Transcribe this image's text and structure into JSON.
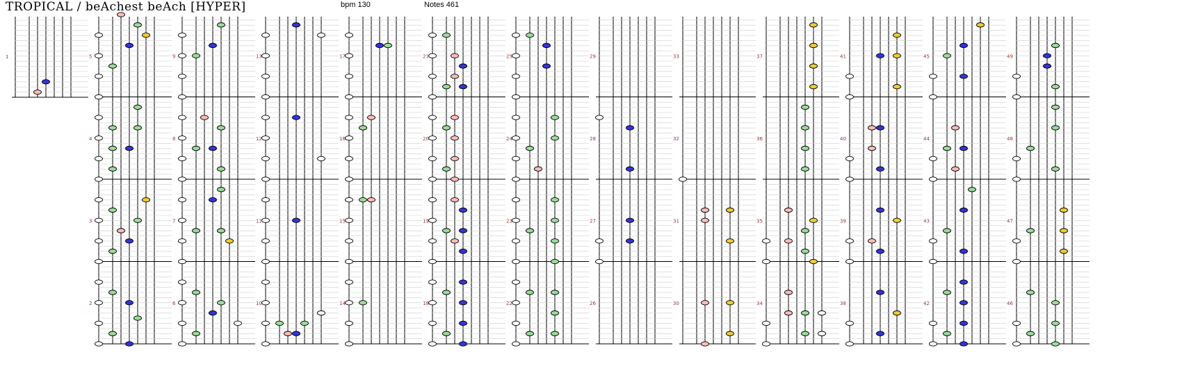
{
  "header": {
    "title": "TROPICAL / beAchest beAch [HYPER]",
    "bpm_text": "bpm 130",
    "notes_text": "Notes 461"
  },
  "colors": {
    "white_note": "#ffffff",
    "green_note": "#99dd99",
    "blue_note": "#3333dd",
    "pink_note": "#ffbbbb",
    "yellow_note": "#eecc33",
    "measure_number": "#993333",
    "lane_line": "#000000",
    "beat_grid": "#cccccc"
  },
  "lane_colors": [
    "white",
    "green",
    "pink",
    "blue",
    "green",
    "yellow",
    "white"
  ],
  "measures": [
    {
      "number": "1",
      "notes": [
        [
          2,
          1
        ],
        [
          3,
          3
        ]
      ]
    },
    {
      "number": "2",
      "notes": [
        [
          0,
          0
        ],
        [
          0,
          4
        ],
        [
          0,
          8
        ],
        [
          0,
          12
        ],
        [
          1,
          2
        ],
        [
          1,
          10
        ],
        [
          3,
          0
        ],
        [
          3,
          8
        ],
        [
          4,
          5
        ]
      ]
    },
    {
      "number": "3",
      "notes": [
        [
          0,
          0
        ],
        [
          0,
          4
        ],
        [
          0,
          8
        ],
        [
          0,
          12
        ],
        [
          1,
          2
        ],
        [
          1,
          10
        ],
        [
          2,
          6
        ],
        [
          3,
          4
        ],
        [
          4,
          8
        ],
        [
          5,
          12
        ]
      ]
    },
    {
      "number": "4",
      "notes": [
        [
          0,
          0
        ],
        [
          0,
          4
        ],
        [
          0,
          8
        ],
        [
          0,
          12
        ],
        [
          1,
          2
        ],
        [
          1,
          10
        ],
        [
          1,
          6
        ],
        [
          3,
          6
        ],
        [
          4,
          14
        ],
        [
          4,
          10
        ]
      ]
    },
    {
      "number": "5",
      "notes": [
        [
          0,
          0
        ],
        [
          0,
          4
        ],
        [
          0,
          8
        ],
        [
          0,
          12
        ],
        [
          1,
          6
        ],
        [
          2,
          16
        ],
        [
          3,
          10
        ],
        [
          4,
          14
        ],
        [
          5,
          12
        ]
      ]
    },
    {
      "number": "6",
      "notes": [
        [
          0,
          0
        ],
        [
          0,
          4
        ],
        [
          0,
          8
        ],
        [
          0,
          12
        ],
        [
          1,
          2
        ],
        [
          1,
          10
        ],
        [
          4,
          8
        ],
        [
          3,
          6
        ],
        [
          6,
          4
        ]
      ]
    },
    {
      "number": "7",
      "notes": [
        [
          0,
          0
        ],
        [
          0,
          4
        ],
        [
          0,
          8
        ],
        [
          0,
          12
        ],
        [
          1,
          6
        ],
        [
          4,
          14
        ],
        [
          3,
          12
        ],
        [
          5,
          4
        ],
        [
          4,
          6
        ]
      ]
    },
    {
      "number": "8",
      "notes": [
        [
          0,
          0
        ],
        [
          0,
          4
        ],
        [
          0,
          8
        ],
        [
          0,
          12
        ],
        [
          1,
          6
        ],
        [
          3,
          6
        ],
        [
          4,
          2
        ],
        [
          2,
          12
        ],
        [
          4,
          10
        ]
      ]
    },
    {
      "number": "9",
      "notes": [
        [
          0,
          0
        ],
        [
          0,
          4
        ],
        [
          0,
          8
        ],
        [
          0,
          12
        ],
        [
          1,
          8
        ],
        [
          3,
          10
        ],
        [
          4,
          14
        ]
      ]
    },
    {
      "number": "10",
      "notes": [
        [
          0,
          0
        ],
        [
          0,
          4
        ],
        [
          0,
          8
        ],
        [
          0,
          12
        ],
        [
          1,
          4
        ],
        [
          2,
          2
        ],
        [
          3,
          2
        ],
        [
          4,
          4
        ],
        [
          6,
          6
        ]
      ]
    },
    {
      "number": "11",
      "notes": [
        [
          0,
          0
        ],
        [
          0,
          4
        ],
        [
          0,
          8
        ],
        [
          0,
          12
        ],
        [
          3,
          8
        ]
      ]
    },
    {
      "number": "12",
      "notes": [
        [
          0,
          0
        ],
        [
          0,
          4
        ],
        [
          0,
          8
        ],
        [
          0,
          12
        ],
        [
          3,
          12
        ],
        [
          6,
          4
        ]
      ]
    },
    {
      "number": "13",
      "notes": [
        [
          0,
          0
        ],
        [
          0,
          4
        ],
        [
          0,
          8
        ],
        [
          0,
          12
        ],
        [
          3,
          14
        ],
        [
          6,
          12
        ]
      ]
    },
    {
      "number": "14",
      "notes": [
        [
          0,
          0
        ],
        [
          0,
          4
        ],
        [
          0,
          8
        ],
        [
          0,
          12
        ],
        [
          1,
          8
        ]
      ]
    },
    {
      "number": "15",
      "notes": [
        [
          0,
          0
        ],
        [
          0,
          4
        ],
        [
          0,
          8
        ],
        [
          0,
          12
        ],
        [
          1,
          12
        ],
        [
          2,
          12
        ]
      ]
    },
    {
      "number": "16",
      "notes": [
        [
          0,
          0
        ],
        [
          0,
          4
        ],
        [
          0,
          8
        ],
        [
          0,
          12
        ],
        [
          1,
          10
        ],
        [
          2,
          12
        ]
      ]
    },
    {
      "number": "17",
      "notes": [
        [
          0,
          0
        ],
        [
          0,
          4
        ],
        [
          0,
          8
        ],
        [
          0,
          12
        ],
        [
          3,
          10
        ],
        [
          4,
          10
        ]
      ]
    },
    {
      "number": "18",
      "notes": [
        [
          0,
          0
        ],
        [
          0,
          4
        ],
        [
          0,
          8
        ],
        [
          0,
          12
        ],
        [
          1,
          2
        ],
        [
          1,
          10
        ],
        [
          3,
          0
        ],
        [
          3,
          4
        ],
        [
          3,
          8
        ],
        [
          3,
          12
        ]
      ]
    },
    {
      "number": "19",
      "notes": [
        [
          0,
          0
        ],
        [
          0,
          4
        ],
        [
          0,
          8
        ],
        [
          0,
          12
        ],
        [
          1,
          6
        ],
        [
          2,
          4
        ],
        [
          2,
          12
        ],
        [
          3,
          2
        ],
        [
          3,
          6
        ],
        [
          3,
          10
        ]
      ]
    },
    {
      "number": "20",
      "notes": [
        [
          0,
          0
        ],
        [
          0,
          4
        ],
        [
          0,
          8
        ],
        [
          0,
          12
        ],
        [
          1,
          2
        ],
        [
          1,
          10
        ],
        [
          2,
          0
        ],
        [
          2,
          4
        ],
        [
          2,
          8
        ],
        [
          2,
          12
        ]
      ]
    },
    {
      "number": "21",
      "notes": [
        [
          0,
          0
        ],
        [
          0,
          4
        ],
        [
          0,
          8
        ],
        [
          0,
          12
        ],
        [
          1,
          2
        ],
        [
          1,
          12
        ],
        [
          2,
          4
        ],
        [
          2,
          8
        ],
        [
          3,
          2
        ],
        [
          3,
          6
        ]
      ]
    },
    {
      "number": "22",
      "notes": [
        [
          0,
          0
        ],
        [
          0,
          4
        ],
        [
          0,
          8
        ],
        [
          0,
          12
        ],
        [
          1,
          2
        ],
        [
          1,
          10
        ],
        [
          4,
          2
        ],
        [
          4,
          6
        ],
        [
          4,
          10
        ]
      ]
    },
    {
      "number": "23",
      "notes": [
        [
          0,
          0
        ],
        [
          0,
          4
        ],
        [
          0,
          8
        ],
        [
          0,
          12
        ],
        [
          1,
          6
        ],
        [
          4,
          0
        ],
        [
          4,
          4
        ],
        [
          4,
          8
        ],
        [
          4,
          12
        ]
      ]
    },
    {
      "number": "24",
      "notes": [
        [
          0,
          0
        ],
        [
          0,
          4
        ],
        [
          0,
          8
        ],
        [
          0,
          12
        ],
        [
          1,
          6
        ],
        [
          2,
          2
        ],
        [
          4,
          8
        ],
        [
          4,
          12
        ]
      ]
    },
    {
      "number": "25",
      "notes": [
        [
          0,
          0
        ],
        [
          0,
          4
        ],
        [
          0,
          8
        ],
        [
          0,
          12
        ],
        [
          1,
          12
        ],
        [
          3,
          6
        ],
        [
          3,
          10
        ]
      ]
    },
    {
      "number": "26",
      "notes": []
    },
    {
      "number": "27",
      "notes": [
        [
          0,
          0
        ],
        [
          0,
          4
        ],
        [
          3,
          4
        ],
        [
          3,
          8
        ]
      ]
    },
    {
      "number": "28",
      "notes": [
        [
          0,
          12
        ],
        [
          3,
          2
        ],
        [
          3,
          10
        ]
      ]
    },
    {
      "number": "29",
      "notes": []
    },
    {
      "number": "30",
      "notes": [
        [
          2,
          0
        ],
        [
          2,
          8
        ],
        [
          5,
          2
        ],
        [
          5,
          8
        ]
      ]
    },
    {
      "number": "31",
      "notes": [
        [
          2,
          8
        ],
        [
          2,
          10
        ],
        [
          5,
          10
        ],
        [
          5,
          4
        ]
      ]
    },
    {
      "number": "32",
      "notes": [
        [
          0,
          0
        ]
      ]
    },
    {
      "number": "33",
      "notes": []
    },
    {
      "number": "34",
      "notes": [
        [
          0,
          0
        ],
        [
          0,
          4
        ],
        [
          2,
          6
        ],
        [
          2,
          10
        ],
        [
          4,
          2
        ],
        [
          4,
          6
        ],
        [
          6,
          2
        ],
        [
          6,
          6
        ]
      ]
    },
    {
      "number": "35",
      "notes": [
        [
          0,
          0
        ],
        [
          0,
          4
        ],
        [
          2,
          4
        ],
        [
          2,
          10
        ],
        [
          4,
          2
        ],
        [
          4,
          6
        ],
        [
          5,
          0
        ],
        [
          5,
          8
        ]
      ]
    },
    {
      "number": "36",
      "notes": [
        [
          4,
          2
        ],
        [
          4,
          6
        ],
        [
          4,
          10
        ],
        [
          4,
          14
        ]
      ]
    },
    {
      "number": "37",
      "notes": [
        [
          5,
          2
        ],
        [
          5,
          6
        ],
        [
          5,
          10
        ],
        [
          5,
          14
        ]
      ]
    },
    {
      "number": "38",
      "notes": [
        [
          0,
          0
        ],
        [
          0,
          4
        ],
        [
          3,
          2
        ],
        [
          3,
          10
        ],
        [
          5,
          6
        ]
      ]
    },
    {
      "number": "39",
      "notes": [
        [
          0,
          0
        ],
        [
          0,
          4
        ],
        [
          2,
          4
        ],
        [
          3,
          2
        ],
        [
          3,
          10
        ],
        [
          5,
          8
        ]
      ]
    },
    {
      "number": "40",
      "notes": [
        [
          0,
          0
        ],
        [
          0,
          4
        ],
        [
          2,
          6
        ],
        [
          2,
          10
        ],
        [
          3,
          2
        ],
        [
          3,
          10
        ]
      ]
    },
    {
      "number": "41",
      "notes": [
        [
          0,
          0
        ],
        [
          0,
          4
        ],
        [
          3,
          8
        ],
        [
          5,
          2
        ],
        [
          5,
          8
        ],
        [
          5,
          12
        ]
      ]
    },
    {
      "number": "42",
      "notes": [
        [
          0,
          0
        ],
        [
          0,
          4
        ],
        [
          1,
          2
        ],
        [
          1,
          10
        ],
        [
          3,
          0
        ],
        [
          3,
          4
        ],
        [
          3,
          8
        ],
        [
          3,
          12
        ]
      ]
    },
    {
      "number": "43",
      "notes": [
        [
          0,
          0
        ],
        [
          0,
          4
        ],
        [
          1,
          6
        ],
        [
          3,
          2
        ],
        [
          3,
          10
        ],
        [
          4,
          14
        ]
      ]
    },
    {
      "number": "44",
      "notes": [
        [
          0,
          0
        ],
        [
          0,
          4
        ],
        [
          1,
          6
        ],
        [
          2,
          2
        ],
        [
          2,
          10
        ],
        [
          3,
          6
        ]
      ]
    },
    {
      "number": "45",
      "notes": [
        [
          0,
          0
        ],
        [
          0,
          4
        ],
        [
          1,
          8
        ],
        [
          3,
          4
        ],
        [
          3,
          10
        ],
        [
          5,
          14
        ]
      ]
    },
    {
      "number": "46",
      "notes": [
        [
          0,
          0
        ],
        [
          0,
          4
        ],
        [
          1,
          2
        ],
        [
          1,
          10
        ],
        [
          4,
          0
        ],
        [
          4,
          4
        ],
        [
          4,
          8
        ]
      ]
    },
    {
      "number": "47",
      "notes": [
        [
          0,
          0
        ],
        [
          0,
          4
        ],
        [
          1,
          6
        ],
        [
          5,
          2
        ],
        [
          5,
          6
        ],
        [
          5,
          10
        ]
      ]
    },
    {
      "number": "48",
      "notes": [
        [
          0,
          0
        ],
        [
          0,
          4
        ],
        [
          1,
          6
        ],
        [
          4,
          2
        ],
        [
          4,
          10
        ],
        [
          4,
          14
        ]
      ]
    },
    {
      "number": "49",
      "notes": [
        [
          0,
          0
        ],
        [
          0,
          4
        ],
        [
          3,
          6
        ],
        [
          3,
          8
        ],
        [
          4,
          2
        ],
        [
          4,
          10
        ]
      ]
    }
  ]
}
